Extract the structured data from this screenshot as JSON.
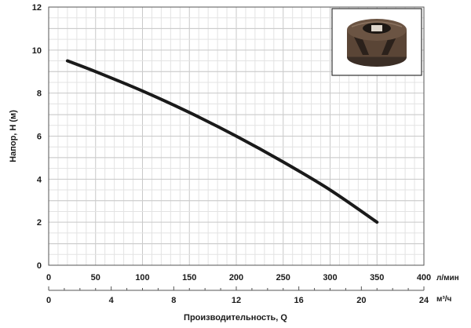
{
  "chart_data": {
    "type": "line",
    "title": "",
    "ylabel": "Напор, H (м)",
    "xlabel": "Производительность, Q",
    "x_unit_primary": "л/мин",
    "x_unit_secondary": "м³/ч",
    "xlim": [
      0,
      400
    ],
    "ylim": [
      0,
      12
    ],
    "x_ticks": [
      0,
      50,
      100,
      150,
      200,
      250,
      300,
      350,
      400
    ],
    "y_ticks": [
      0,
      2,
      4,
      6,
      8,
      10,
      12
    ],
    "x2_ticks": [
      0,
      4,
      8,
      12,
      16,
      20,
      24
    ],
    "grid": true,
    "inset_image": "pump-impeller",
    "series": [
      {
        "x": [
          20,
          50,
          100,
          150,
          200,
          250,
          300,
          350
        ],
        "y": [
          9.5,
          9.0,
          8.1,
          7.1,
          6.0,
          4.8,
          3.5,
          2.0
        ],
        "color": "#1a1a1a"
      }
    ]
  }
}
